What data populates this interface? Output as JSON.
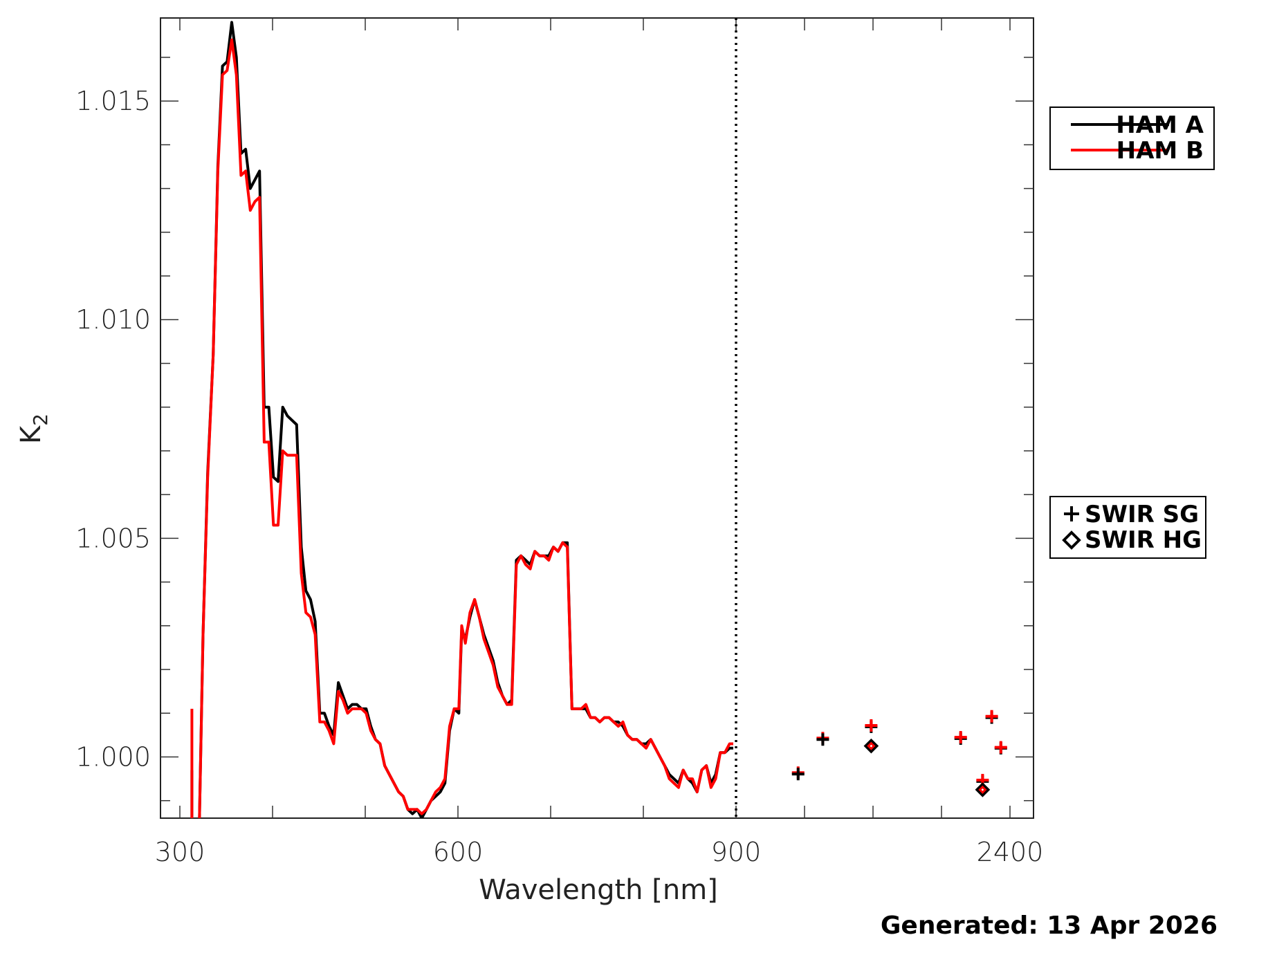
{
  "chart_data": {
    "type": "line",
    "xlabel": "Wavelength [nm]",
    "ylabel": "K",
    "ylabel_subscript": "2",
    "ylim": [
      0.9986,
      1.0169
    ],
    "x_tick_labels": [
      "300",
      "600",
      "900",
      "2400"
    ],
    "y_tick_labels": [
      "1.000",
      "1.005",
      "1.010",
      "1.015"
    ],
    "y_ticks": [
      1.0,
      1.005,
      1.01,
      1.015
    ],
    "grid": false,
    "legend_line_placement": "top-right outside",
    "legend_marker_placement": "middle-right outside",
    "vline_at": 900,
    "colors": {
      "ham_a": "#000000",
      "ham_b": "#ff0000"
    },
    "x_scale_note": "piecewise: 300-900 linear, 900-2400 compressed",
    "series": [
      {
        "name": "HAM A",
        "color": "#000000",
        "points": [
          [
            313,
            0.9997
          ],
          [
            313,
            0.9984
          ],
          [
            321,
            0.9984
          ],
          [
            325,
            1.0028
          ],
          [
            330,
            1.0065
          ],
          [
            336,
            1.0092
          ],
          [
            341,
            1.0135
          ],
          [
            346,
            1.0158
          ],
          [
            351,
            1.0159
          ],
          [
            356,
            1.0168
          ],
          [
            361,
            1.016
          ],
          [
            366,
            1.0138
          ],
          [
            371,
            1.0139
          ],
          [
            376,
            1.013
          ],
          [
            381,
            1.0132
          ],
          [
            386,
            1.0134
          ],
          [
            391,
            1.008
          ],
          [
            396,
            1.008
          ],
          [
            401,
            1.0064
          ],
          [
            406,
            1.0063
          ],
          [
            411,
            1.008
          ],
          [
            416,
            1.0078
          ],
          [
            421,
            1.0077
          ],
          [
            426,
            1.0076
          ],
          [
            431,
            1.0048
          ],
          [
            436,
            1.0038
          ],
          [
            441,
            1.0036
          ],
          [
            446,
            1.0031
          ],
          [
            451,
            1.001
          ],
          [
            456,
            1.001
          ],
          [
            461,
            1.0007
          ],
          [
            466,
            1.0005
          ],
          [
            471,
            1.0017
          ],
          [
            476,
            1.0014
          ],
          [
            481,
            1.0011
          ],
          [
            486,
            1.0012
          ],
          [
            491,
            1.0012
          ],
          [
            496,
            1.0011
          ],
          [
            501,
            1.0011
          ],
          [
            506,
            1.0007
          ],
          [
            511,
            1.0004
          ],
          [
            516,
            1.0003
          ],
          [
            521,
            0.9998
          ],
          [
            526,
            0.9996
          ],
          [
            531,
            0.9994
          ],
          [
            536,
            0.9992
          ],
          [
            541,
            0.9991
          ],
          [
            546,
            0.9988
          ],
          [
            551,
            0.9987
          ],
          [
            556,
            0.9988
          ],
          [
            561,
            0.9986
          ],
          [
            566,
            0.9988
          ],
          [
            571,
            0.999
          ],
          [
            576,
            0.9991
          ],
          [
            581,
            0.9992
          ],
          [
            586,
            0.9994
          ],
          [
            591,
            1.0006
          ],
          [
            596,
            1.0011
          ],
          [
            601,
            1.001
          ],
          [
            604,
            1.0029
          ],
          [
            608,
            1.0027
          ],
          [
            613,
            1.0032
          ],
          [
            618,
            1.0036
          ],
          [
            623,
            1.0032
          ],
          [
            628,
            1.0028
          ],
          [
            633,
            1.0025
          ],
          [
            638,
            1.0022
          ],
          [
            643,
            1.0017
          ],
          [
            648,
            1.0014
          ],
          [
            653,
            1.0012
          ],
          [
            658,
            1.0013
          ],
          [
            663,
            1.0045
          ],
          [
            668,
            1.0046
          ],
          [
            673,
            1.0045
          ],
          [
            678,
            1.0044
          ],
          [
            683,
            1.0047
          ],
          [
            688,
            1.0046
          ],
          [
            693,
            1.0046
          ],
          [
            698,
            1.0046
          ],
          [
            703,
            1.0048
          ],
          [
            708,
            1.0047
          ],
          [
            713,
            1.0049
          ],
          [
            718,
            1.0049
          ],
          [
            723,
            1.0011
          ],
          [
            728,
            1.0011
          ],
          [
            733,
            1.0011
          ],
          [
            738,
            1.0011
          ],
          [
            743,
            1.0009
          ],
          [
            748,
            1.0009
          ],
          [
            753,
            1.0008
          ],
          [
            758,
            1.0009
          ],
          [
            763,
            1.0009
          ],
          [
            768,
            1.0008
          ],
          [
            773,
            1.0008
          ],
          [
            778,
            1.0007
          ],
          [
            783,
            1.0005
          ],
          [
            788,
            1.0004
          ],
          [
            793,
            1.0004
          ],
          [
            798,
            1.0003
          ],
          [
            803,
            1.0003
          ],
          [
            808,
            1.0004
          ],
          [
            813,
            1.0002
          ],
          [
            818,
            1.0
          ],
          [
            823,
            0.9998
          ],
          [
            828,
            0.9996
          ],
          [
            833,
            0.9995
          ],
          [
            838,
            0.9994
          ],
          [
            843,
            0.9997
          ],
          [
            848,
            0.9995
          ],
          [
            853,
            0.9994
          ],
          [
            858,
            0.9992
          ],
          [
            863,
            0.9997
          ],
          [
            868,
            0.9998
          ],
          [
            873,
            0.9994
          ],
          [
            878,
            0.9996
          ],
          [
            883,
            1.0001
          ],
          [
            888,
            1.0001
          ],
          [
            893,
            1.0002
          ],
          [
            897,
            1.0002
          ]
        ]
      },
      {
        "name": "HAM B",
        "color": "#ff0000",
        "points": [
          [
            313,
            1.0011
          ],
          [
            313,
            0.9984
          ],
          [
            321,
            0.9984
          ],
          [
            325,
            1.0028
          ],
          [
            330,
            1.0064
          ],
          [
            336,
            1.0092
          ],
          [
            341,
            1.0134
          ],
          [
            346,
            1.0156
          ],
          [
            351,
            1.0157
          ],
          [
            356,
            1.0164
          ],
          [
            361,
            1.0156
          ],
          [
            366,
            1.0133
          ],
          [
            371,
            1.0134
          ],
          [
            376,
            1.0125
          ],
          [
            381,
            1.0127
          ],
          [
            386,
            1.0128
          ],
          [
            391,
            1.0072
          ],
          [
            396,
            1.0072
          ],
          [
            401,
            1.0053
          ],
          [
            406,
            1.0053
          ],
          [
            411,
            1.007
          ],
          [
            416,
            1.0069
          ],
          [
            421,
            1.0069
          ],
          [
            426,
            1.0069
          ],
          [
            431,
            1.0042
          ],
          [
            436,
            1.0033
          ],
          [
            441,
            1.0032
          ],
          [
            446,
            1.0028
          ],
          [
            451,
            1.0008
          ],
          [
            456,
            1.0008
          ],
          [
            461,
            1.0006
          ],
          [
            466,
            1.0003
          ],
          [
            471,
            1.0015
          ],
          [
            476,
            1.0013
          ],
          [
            481,
            1.001
          ],
          [
            486,
            1.0011
          ],
          [
            491,
            1.0011
          ],
          [
            496,
            1.0011
          ],
          [
            501,
            1.001
          ],
          [
            506,
            1.0006
          ],
          [
            511,
            1.0004
          ],
          [
            516,
            1.0003
          ],
          [
            521,
            0.9998
          ],
          [
            526,
            0.9996
          ],
          [
            531,
            0.9994
          ],
          [
            536,
            0.9992
          ],
          [
            541,
            0.9991
          ],
          [
            546,
            0.9988
          ],
          [
            551,
            0.9988
          ],
          [
            556,
            0.9988
          ],
          [
            561,
            0.9987
          ],
          [
            566,
            0.9988
          ],
          [
            571,
            0.999
          ],
          [
            576,
            0.9992
          ],
          [
            581,
            0.9993
          ],
          [
            586,
            0.9995
          ],
          [
            591,
            1.0007
          ],
          [
            596,
            1.0011
          ],
          [
            601,
            1.0011
          ],
          [
            604,
            1.003
          ],
          [
            608,
            1.0026
          ],
          [
            613,
            1.0033
          ],
          [
            618,
            1.0036
          ],
          [
            623,
            1.0032
          ],
          [
            628,
            1.0027
          ],
          [
            633,
            1.0024
          ],
          [
            638,
            1.0021
          ],
          [
            643,
            1.0016
          ],
          [
            648,
            1.0014
          ],
          [
            653,
            1.0012
          ],
          [
            658,
            1.0012
          ],
          [
            663,
            1.0044
          ],
          [
            668,
            1.0046
          ],
          [
            673,
            1.0044
          ],
          [
            678,
            1.0043
          ],
          [
            683,
            1.0047
          ],
          [
            688,
            1.0046
          ],
          [
            693,
            1.0046
          ],
          [
            698,
            1.0045
          ],
          [
            703,
            1.0048
          ],
          [
            708,
            1.0047
          ],
          [
            713,
            1.0049
          ],
          [
            718,
            1.0048
          ],
          [
            723,
            1.0011
          ],
          [
            728,
            1.0011
          ],
          [
            733,
            1.0011
          ],
          [
            738,
            1.0012
          ],
          [
            743,
            1.0009
          ],
          [
            748,
            1.0009
          ],
          [
            753,
            1.0008
          ],
          [
            758,
            1.0009
          ],
          [
            763,
            1.0009
          ],
          [
            768,
            1.0008
          ],
          [
            773,
            1.0007
          ],
          [
            778,
            1.0008
          ],
          [
            783,
            1.0005
          ],
          [
            788,
            1.0004
          ],
          [
            793,
            1.0004
          ],
          [
            798,
            1.0003
          ],
          [
            803,
            1.0002
          ],
          [
            808,
            1.0004
          ],
          [
            813,
            1.0002
          ],
          [
            818,
            1.0
          ],
          [
            823,
            0.9998
          ],
          [
            828,
            0.9995
          ],
          [
            833,
            0.9994
          ],
          [
            838,
            0.9993
          ],
          [
            843,
            0.9997
          ],
          [
            848,
            0.9995
          ],
          [
            853,
            0.9995
          ],
          [
            858,
            0.9992
          ],
          [
            863,
            0.9997
          ],
          [
            868,
            0.9998
          ],
          [
            873,
            0.9993
          ],
          [
            878,
            0.9995
          ],
          [
            883,
            1.0001
          ],
          [
            888,
            1.0001
          ],
          [
            893,
            1.0003
          ],
          [
            897,
            1.0003
          ]
        ]
      },
      {
        "name": "SWIR SG",
        "marker": "plus",
        "points": [
          [
            1240,
            0.99964
          ],
          [
            1375,
            1.00043
          ],
          [
            1640,
            1.00069
          ],
          [
            1640,
            1.00072
          ],
          [
            2130,
            1.00042
          ],
          [
            2130,
            1.00045
          ],
          [
            2250,
            0.99944
          ],
          [
            2250,
            0.99947
          ],
          [
            2300,
            1.0009
          ],
          [
            2300,
            1.00093
          ],
          [
            2350,
            1.0002
          ],
          [
            2350,
            1.00022
          ]
        ]
      },
      {
        "name": "SWIR HG",
        "marker": "diamond",
        "points": [
          [
            1640,
            1.00025
          ],
          [
            2250,
            0.99925
          ]
        ]
      }
    ]
  },
  "legend_lines": [
    {
      "label": "HAM  A",
      "color": "#000000"
    },
    {
      "label": "HAM  B",
      "color": "#ff0000"
    }
  ],
  "legend_markers": [
    {
      "label": "SWIR  SG",
      "icon": "plus-icon"
    },
    {
      "label": "SWIR  HG",
      "icon": "diamond-icon"
    }
  ],
  "footer": "Generated: 13 Apr 2026"
}
